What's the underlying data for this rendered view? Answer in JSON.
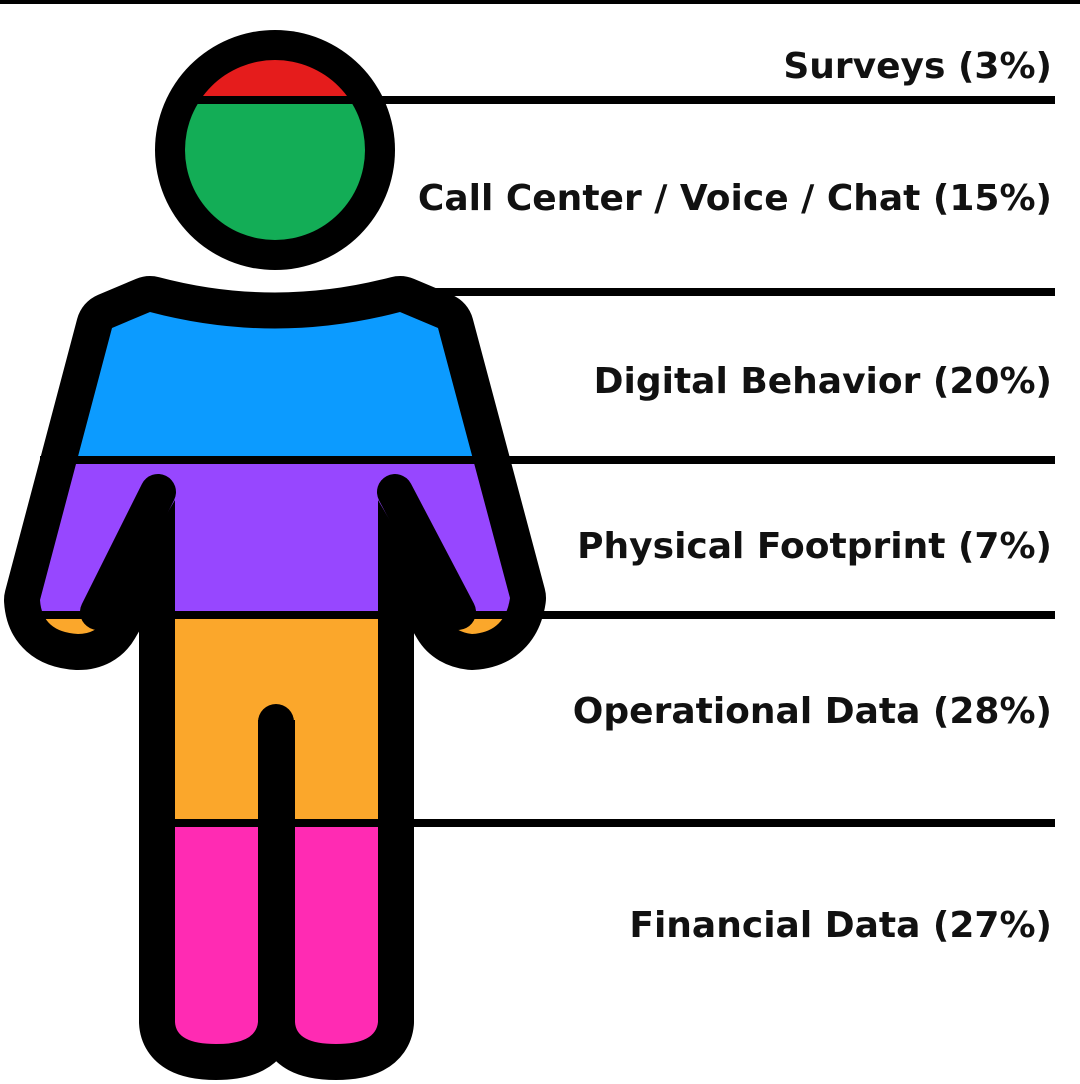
{
  "segments": [
    {
      "label": "Surveys (3%)",
      "color": "#e51c1c"
    },
    {
      "label": "Call Center / Voice / Chat (15%)",
      "color": "#13ad56"
    },
    {
      "label": "Digital Behavior (20%)",
      "color": "#0c9bff"
    },
    {
      "label": "Physical Footprint (7%)",
      "color": "#9747ff"
    },
    {
      "label": "Operational Data (28%)",
      "color": "#fba72b"
    },
    {
      "label": "Financial Data (27%)",
      "color": "#ff2bb3"
    }
  ]
}
